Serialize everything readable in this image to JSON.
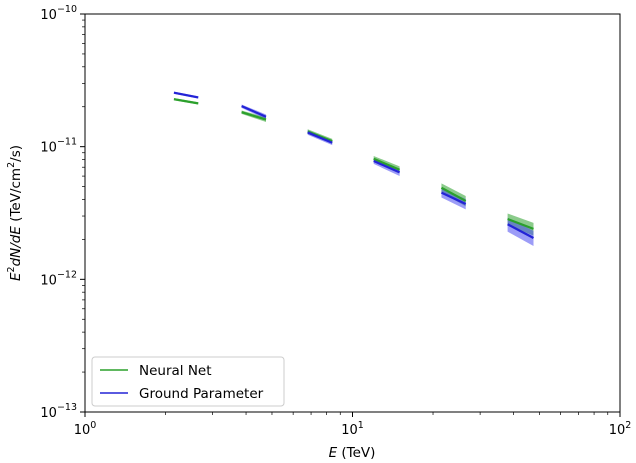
{
  "chart_data": {
    "type": "line",
    "xscale": "log",
    "yscale": "log",
    "xlim": [
      1,
      100
    ],
    "ylim": [
      1e-13,
      1e-10
    ],
    "xlabel": {
      "italic": "E",
      "rest": " (TeV)"
    },
    "ylabel": {
      "pre": "E",
      "sup1": "2",
      "italic": "dN/dE",
      "unit_pre": " (TeV/cm",
      "sup2": "2",
      "unit_post": "/s)"
    },
    "x_ticks": [
      {
        "base": "10",
        "exp": "0",
        "value": 1
      },
      {
        "base": "10",
        "exp": "1",
        "value": 10
      },
      {
        "base": "10",
        "exp": "2",
        "value": 100
      }
    ],
    "y_ticks": [
      {
        "base": "10",
        "exp": "−13",
        "value": 1e-13
      },
      {
        "base": "10",
        "exp": "−12",
        "value": 1e-12
      },
      {
        "base": "10",
        "exp": "−11",
        "value": 1e-11
      },
      {
        "base": "10",
        "exp": "−10",
        "value": 1e-10
      }
    ],
    "grid": false,
    "legend_position": "lower-left",
    "series": [
      {
        "name": "Neural Net",
        "color": "#2ca02c",
        "band_color": "#2ca02c",
        "segments": [
          {
            "x": [
              2.15,
              2.65
            ],
            "y": [
              2.28e-11,
              2.12e-11
            ],
            "band": [
              0.02,
              0.02
            ]
          },
          {
            "x": [
              3.85,
              4.75
            ],
            "y": [
              1.82e-11,
              1.6e-11
            ],
            "band": [
              0.03,
              0.04
            ]
          },
          {
            "x": [
              6.8,
              8.4
            ],
            "y": [
              1.3e-11,
              1.1e-11
            ],
            "band": [
              0.04,
              0.04
            ]
          },
          {
            "x": [
              12.0,
              15.0
            ],
            "y": [
              8.1e-12,
              6.7e-12
            ],
            "band": [
              0.05,
              0.06
            ]
          },
          {
            "x": [
              21.5,
              26.5
            ],
            "y": [
              4.9e-12,
              3.9e-12
            ],
            "band": [
              0.08,
              0.09
            ]
          },
          {
            "x": [
              38.0,
              47.5
            ],
            "y": [
              2.85e-12,
              2.4e-12
            ],
            "band": [
              0.1,
              0.11
            ]
          }
        ]
      },
      {
        "name": "Ground Parameter",
        "color": "#2323d6",
        "band_color": "#4b4bf0",
        "segments": [
          {
            "x": [
              2.15,
              2.65
            ],
            "y": [
              2.55e-11,
              2.35e-11
            ],
            "band": [
              0.02,
              0.02
            ]
          },
          {
            "x": [
              3.85,
              4.75
            ],
            "y": [
              2.02e-11,
              1.68e-11
            ],
            "band": [
              0.03,
              0.04
            ]
          },
          {
            "x": [
              6.8,
              8.4
            ],
            "y": [
              1.28e-11,
              1.07e-11
            ],
            "band": [
              0.04,
              0.04
            ]
          },
          {
            "x": [
              12.0,
              15.0
            ],
            "y": [
              7.8e-12,
              6.4e-12
            ],
            "band": [
              0.05,
              0.06
            ]
          },
          {
            "x": [
              21.5,
              26.5
            ],
            "y": [
              4.5e-12,
              3.7e-12
            ],
            "band": [
              0.08,
              0.09
            ]
          },
          {
            "x": [
              38.0,
              47.5
            ],
            "y": [
              2.6e-12,
              2.05e-12
            ],
            "band": [
              0.12,
              0.13
            ]
          }
        ]
      }
    ]
  }
}
